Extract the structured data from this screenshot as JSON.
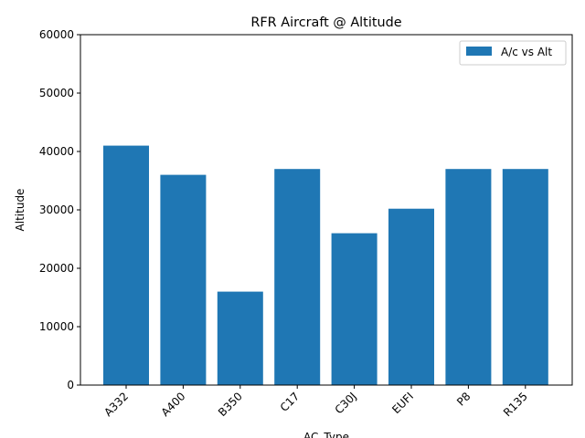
{
  "chart_data": {
    "type": "bar",
    "title": "RFR Aircraft @ Altitude",
    "xlabel": "AC_Type",
    "ylabel": "Altitude",
    "categories": [
      "A332",
      "A400",
      "B350",
      "C17",
      "C30J",
      "EUFI",
      "P8",
      "R135"
    ],
    "series": [
      {
        "name": "A/c vs Alt",
        "values": [
          41000,
          36000,
          16000,
          37000,
          26000,
          30200,
          37000,
          37000
        ]
      }
    ],
    "ylim": [
      0,
      60000
    ],
    "yticks": [
      0,
      10000,
      20000,
      30000,
      40000,
      50000,
      60000
    ],
    "bar_color": "#1f77b4",
    "grid": false,
    "legend_position": "top-right"
  }
}
